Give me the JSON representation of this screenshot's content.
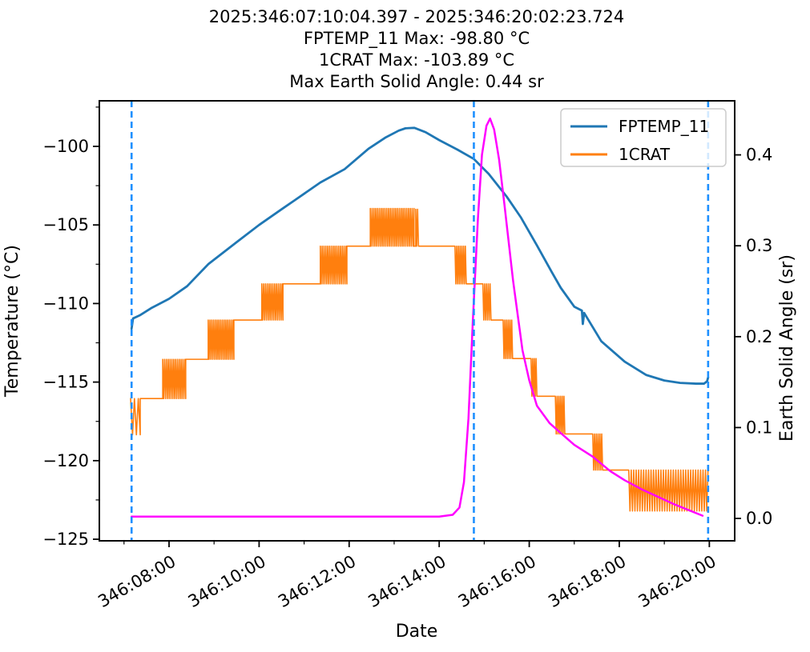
{
  "title": {
    "line1": "2025:346:07:10:04.397 - 2025:346:20:02:23.724",
    "line2": "FPTEMP_11 Max: -98.80 °C",
    "line3": "1CRAT Max: -103.89 °C",
    "line4": "Max Earth Solid Angle: 0.44 sr"
  },
  "chart_data": {
    "type": "line",
    "xlabel": "Date",
    "ylabel_left": "Temperature (°C)",
    "ylabel_right": "Earth Solid Angle (sr)",
    "x_unit": "hours_of_day_346",
    "xlim": [
      6.452,
      20.563
    ],
    "ylim_left": [
      -125.1,
      -97.1
    ],
    "ylim_right": [
      -0.0246,
      0.4595
    ],
    "grid": false,
    "legend_position": "upper-right",
    "x_major_ticks": [
      {
        "t": 8,
        "label": "346:08:00"
      },
      {
        "t": 10,
        "label": "346:10:00"
      },
      {
        "t": 12,
        "label": "346:12:00"
      },
      {
        "t": 14,
        "label": "346:14:00"
      },
      {
        "t": 16,
        "label": "346:16:00"
      },
      {
        "t": 18,
        "label": "346:18:00"
      },
      {
        "t": 20,
        "label": "346:20:00"
      }
    ],
    "x_minor_ticks": [
      7,
      9,
      11,
      13,
      15,
      17,
      19
    ],
    "y_left_major_ticks": [
      {
        "v": -100,
        "label": "−100"
      },
      {
        "v": -105,
        "label": "−105"
      },
      {
        "v": -110,
        "label": "−110"
      },
      {
        "v": -115,
        "label": "−115"
      },
      {
        "v": -120,
        "label": "−120"
      },
      {
        "v": -125,
        "label": "−125"
      }
    ],
    "y_left_minor_ticks": [
      -97.5,
      -102.5,
      -107.5,
      -112.5,
      -117.5,
      -122.5
    ],
    "y_right_major_ticks": [
      {
        "v": 0.0,
        "label": "0.0"
      },
      {
        "v": 0.1,
        "label": "0.1"
      },
      {
        "v": 0.2,
        "label": "0.2"
      },
      {
        "v": 0.3,
        "label": "0.3"
      },
      {
        "v": 0.4,
        "label": "0.4"
      }
    ],
    "legend": [
      {
        "label": "FPTEMP_11",
        "color": "#1f77b4"
      },
      {
        "label": "1CRAT",
        "color": "#ff7f0e"
      }
    ],
    "vlines": {
      "color": "#1e90ff",
      "times": [
        7.168,
        14.77,
        19.973
      ]
    },
    "series": [
      {
        "name": "FPTEMP_11",
        "axis": "left",
        "color": "#1f77b4",
        "width": 2.8,
        "points": [
          [
            7.168,
            -111.6
          ],
          [
            7.2,
            -110.95
          ],
          [
            7.35,
            -110.75
          ],
          [
            7.6,
            -110.3
          ],
          [
            8.0,
            -109.7
          ],
          [
            8.4,
            -108.9
          ],
          [
            8.87,
            -107.5
          ],
          [
            9.5,
            -106.1
          ],
          [
            10.0,
            -105.0
          ],
          [
            10.5,
            -104.0
          ],
          [
            10.78,
            -103.45
          ],
          [
            11.36,
            -102.3
          ],
          [
            11.9,
            -101.45
          ],
          [
            12.43,
            -100.15
          ],
          [
            12.8,
            -99.45
          ],
          [
            13.1,
            -99.0
          ],
          [
            13.25,
            -98.85
          ],
          [
            13.45,
            -98.82
          ],
          [
            13.7,
            -99.1
          ],
          [
            14.0,
            -99.6
          ],
          [
            14.4,
            -100.2
          ],
          [
            14.77,
            -100.8
          ],
          [
            15.1,
            -101.75
          ],
          [
            15.5,
            -103.2
          ],
          [
            15.81,
            -104.5
          ],
          [
            16.17,
            -106.3
          ],
          [
            16.5,
            -108.0
          ],
          [
            16.7,
            -109.0
          ],
          [
            17.0,
            -110.2
          ],
          [
            17.17,
            -110.45
          ],
          [
            17.19,
            -111.3
          ],
          [
            17.22,
            -110.6
          ],
          [
            17.6,
            -112.4
          ],
          [
            18.12,
            -113.7
          ],
          [
            18.6,
            -114.55
          ],
          [
            19.0,
            -114.9
          ],
          [
            19.35,
            -115.05
          ],
          [
            19.7,
            -115.1
          ],
          [
            19.88,
            -115.1
          ],
          [
            19.95,
            -114.95
          ],
          [
            19.973,
            -114.7
          ]
        ]
      },
      {
        "name": "1CRAT",
        "axis": "left",
        "color": "#ff7f0e",
        "width": 1.6,
        "segments": [
          [
            7.146,
            7.36,
            -116.05,
            -118.35,
            "osc",
            0.08
          ],
          [
            7.36,
            7.86,
            -116.05,
            null,
            "level",
            0
          ],
          [
            7.86,
            8.37,
            -113.55,
            -116.05,
            "osc",
            0.04
          ],
          [
            8.37,
            8.87,
            -113.55,
            null,
            "level",
            0
          ],
          [
            8.87,
            9.44,
            -111.05,
            -113.55,
            "osc",
            0.04
          ],
          [
            9.44,
            10.06,
            -111.05,
            null,
            "level",
            0
          ],
          [
            10.06,
            10.53,
            -108.75,
            -111.05,
            "osc",
            0.04
          ],
          [
            10.53,
            11.36,
            -108.75,
            null,
            "level",
            0
          ],
          [
            11.36,
            11.95,
            -106.35,
            -108.75,
            "osc",
            0.04
          ],
          [
            11.95,
            12.47,
            -106.35,
            null,
            "level",
            0
          ],
          [
            12.47,
            13.44,
            -103.95,
            -106.35,
            "osc",
            0.04
          ],
          [
            13.44,
            13.48,
            -106.35,
            null,
            "level",
            0
          ],
          [
            13.48,
            13.54,
            -104.0,
            -106.35,
            "osc",
            0.04
          ],
          [
            13.54,
            14.35,
            -106.35,
            null,
            "level",
            0
          ],
          [
            14.35,
            14.6,
            -106.35,
            -108.75,
            "osc",
            0.04
          ],
          [
            14.6,
            14.97,
            -108.75,
            null,
            "level",
            0
          ],
          [
            14.97,
            15.15,
            -108.75,
            -111.05,
            "osc",
            0.04
          ],
          [
            15.15,
            15.42,
            -111.05,
            null,
            "level",
            0
          ],
          [
            15.42,
            15.63,
            -111.05,
            -113.5,
            "osc",
            0.04
          ],
          [
            15.63,
            16.04,
            -113.5,
            null,
            "level",
            0
          ],
          [
            16.04,
            16.17,
            -113.5,
            -115.9,
            "osc",
            0.04
          ],
          [
            16.17,
            16.58,
            -115.9,
            null,
            "level",
            0
          ],
          [
            16.58,
            16.79,
            -115.9,
            -118.3,
            "osc",
            0.04
          ],
          [
            16.79,
            17.41,
            -118.3,
            null,
            "level",
            0
          ],
          [
            17.41,
            17.63,
            -118.3,
            -120.6,
            "osc",
            0.04
          ],
          [
            17.63,
            18.21,
            -120.6,
            null,
            "level",
            0
          ],
          [
            18.21,
            19.97,
            -120.6,
            -123.2,
            "osc",
            0.055
          ]
        ]
      },
      {
        "name": "Earth Solid Angle",
        "axis": "right",
        "color": "#ff00ff",
        "width": 2.5,
        "points": [
          [
            7.168,
            0.002
          ],
          [
            9.0,
            0.002
          ],
          [
            11.0,
            0.002
          ],
          [
            13.0,
            0.002
          ],
          [
            14.0,
            0.002
          ],
          [
            14.3,
            0.004
          ],
          [
            14.45,
            0.012
          ],
          [
            14.55,
            0.04
          ],
          [
            14.65,
            0.11
          ],
          [
            14.75,
            0.22
          ],
          [
            14.86,
            0.33
          ],
          [
            14.95,
            0.4
          ],
          [
            15.05,
            0.432
          ],
          [
            15.13,
            0.44
          ],
          [
            15.22,
            0.428
          ],
          [
            15.33,
            0.395
          ],
          [
            15.45,
            0.345
          ],
          [
            15.64,
            0.262
          ],
          [
            15.85,
            0.185
          ],
          [
            16.0,
            0.152
          ],
          [
            16.17,
            0.124
          ],
          [
            16.45,
            0.105
          ],
          [
            16.7,
            0.094
          ],
          [
            17.0,
            0.081
          ],
          [
            17.41,
            0.068
          ],
          [
            17.8,
            0.052
          ],
          [
            18.12,
            0.042
          ],
          [
            18.5,
            0.032
          ],
          [
            18.85,
            0.024
          ],
          [
            19.2,
            0.016
          ],
          [
            19.55,
            0.009
          ],
          [
            19.75,
            0.005
          ],
          [
            19.85,
            0.003
          ]
        ]
      }
    ]
  }
}
